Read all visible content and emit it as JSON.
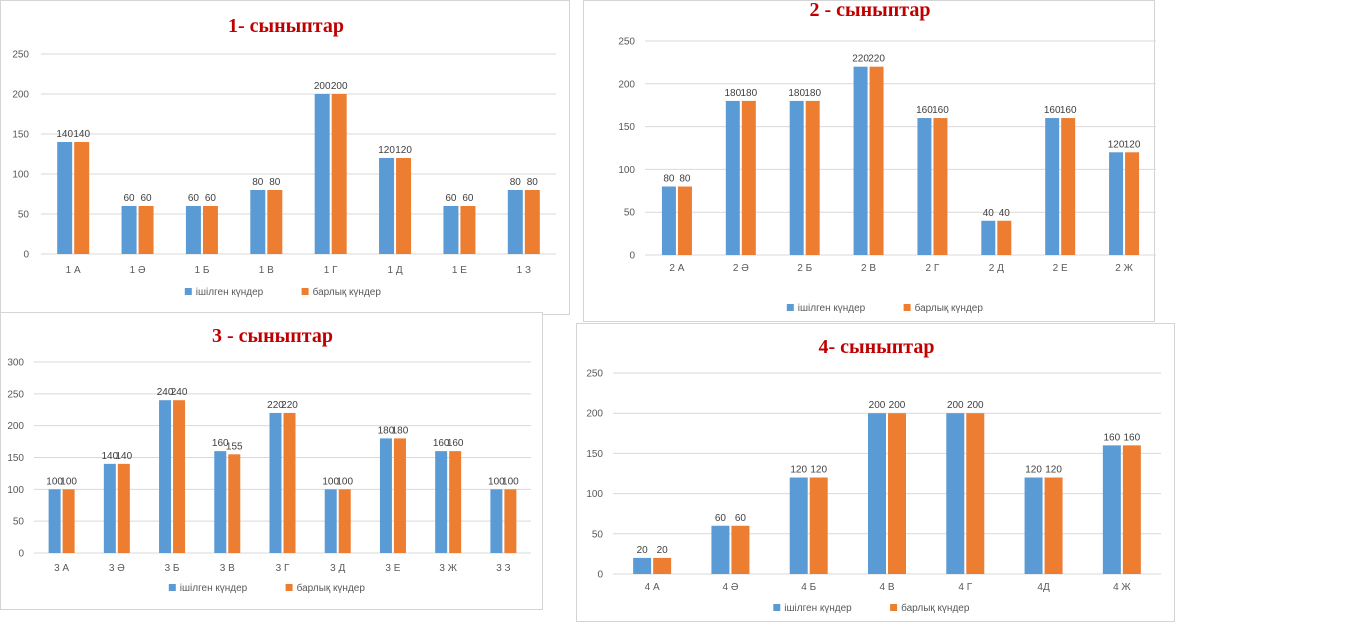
{
  "colors": {
    "series1": "#5b9bd5",
    "series2": "#ed7d31",
    "title": "#c00000",
    "grid": "#d9d9d9"
  },
  "chart_data": [
    {
      "type": "bar",
      "title": "1- сыныптар",
      "categories": [
        "1 А",
        "1 Ә",
        "1 Б",
        "1 В",
        "1 Г",
        "1 Д",
        "1 Е",
        "1 З"
      ],
      "ylim": [
        0,
        250
      ],
      "yticks": [
        0,
        50,
        100,
        150,
        200,
        250
      ],
      "legend_position": "bottom",
      "series": [
        {
          "name": "ішілген күндер",
          "values": [
            140,
            60,
            60,
            80,
            200,
            120,
            60,
            80
          ]
        },
        {
          "name": "барлық күндер",
          "values": [
            140,
            60,
            60,
            80,
            200,
            120,
            60,
            80
          ]
        }
      ]
    },
    {
      "type": "bar",
      "title": "2 - сыныптар",
      "categories": [
        "2 А",
        "2 Ә",
        "2 Б",
        "2 В",
        "2 Г",
        "2 Д",
        "2 Е",
        "2 Ж"
      ],
      "ylim": [
        0,
        250
      ],
      "yticks": [
        0,
        50,
        100,
        150,
        200,
        250
      ],
      "legend_position": "bottom",
      "series": [
        {
          "name": "ішілген күндер",
          "values": [
            80,
            180,
            180,
            220,
            160,
            40,
            160,
            120
          ]
        },
        {
          "name": "барлық күндер",
          "values": [
            80,
            180,
            180,
            220,
            160,
            40,
            160,
            120
          ]
        }
      ]
    },
    {
      "type": "bar",
      "title": "3 - сыныптар",
      "categories": [
        "3 А",
        "3 Ә",
        "3 Б",
        "3 В",
        "3 Г",
        "3 Д",
        "3 Е",
        "3 Ж",
        "3 З"
      ],
      "ylim": [
        0,
        300
      ],
      "yticks": [
        0,
        50,
        100,
        150,
        200,
        250,
        300
      ],
      "legend_position": "bottom",
      "series": [
        {
          "name": "ішілген күндер",
          "values": [
            100,
            140,
            240,
            160,
            220,
            100,
            180,
            160,
            100
          ]
        },
        {
          "name": "барлық күндер",
          "values": [
            100,
            140,
            240,
            155,
            220,
            100,
            180,
            160,
            100
          ]
        }
      ]
    },
    {
      "type": "bar",
      "title": "4- сыныптар",
      "categories": [
        "4 А",
        "4 Ә",
        "4 Б",
        "4 В",
        "4 Г",
        "4Д",
        "4 Ж"
      ],
      "ylim": [
        0,
        250
      ],
      "yticks": [
        0,
        50,
        100,
        150,
        200,
        250
      ],
      "legend_position": "bottom",
      "series": [
        {
          "name": "ішілген күндер",
          "values": [
            20,
            60,
            120,
            200,
            200,
            120,
            160
          ]
        },
        {
          "name": "барлық күндер",
          "values": [
            20,
            60,
            120,
            200,
            200,
            120,
            160
          ]
        }
      ]
    }
  ]
}
